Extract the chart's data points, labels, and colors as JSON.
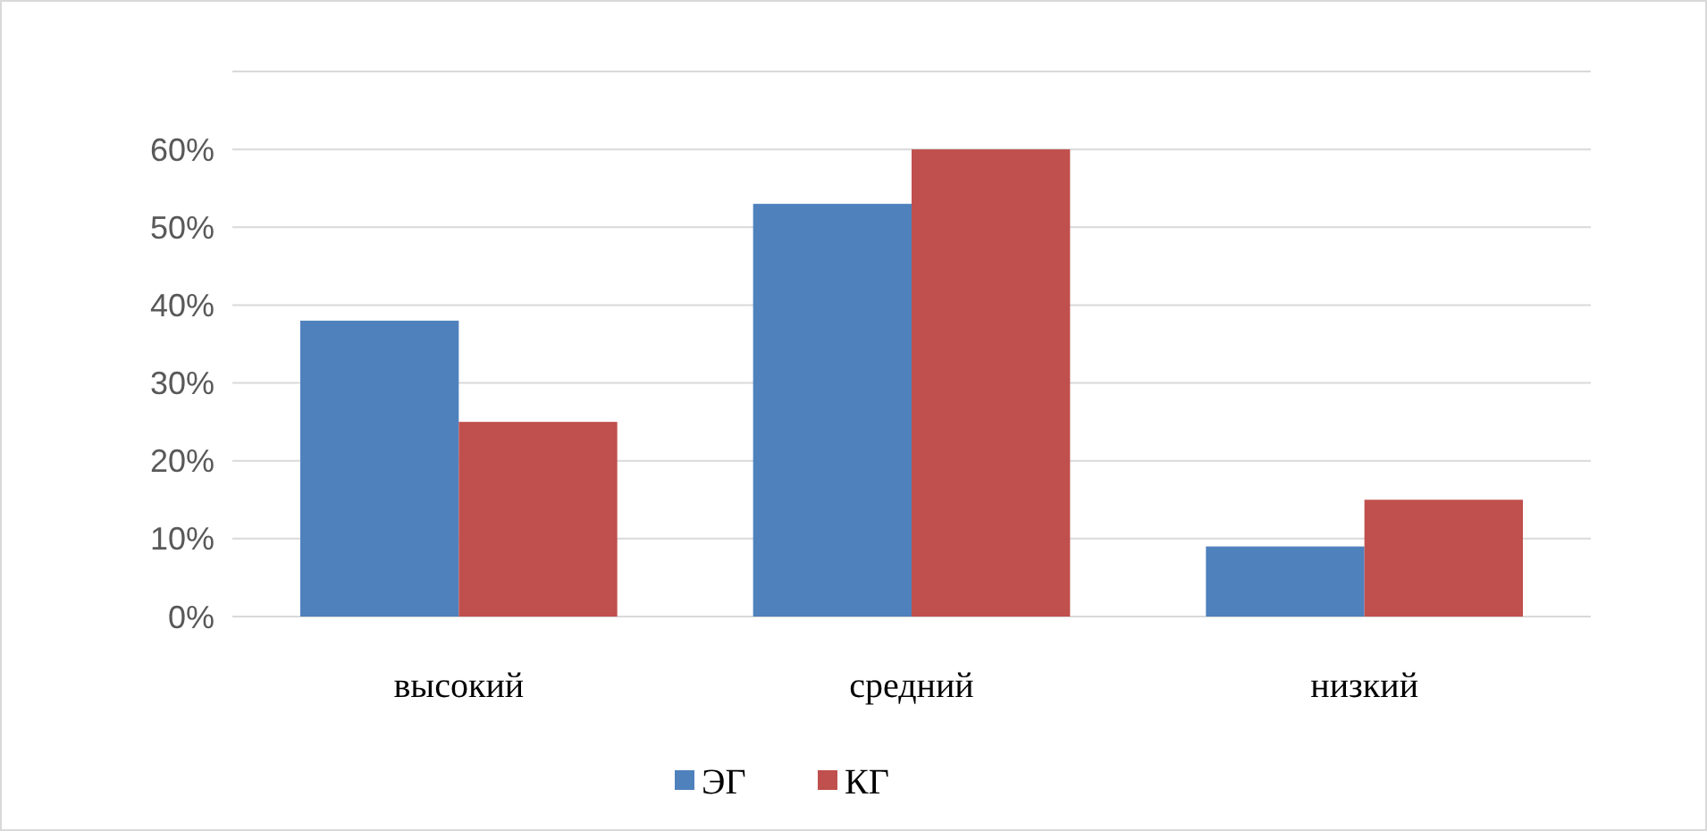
{
  "chart_data": {
    "type": "bar",
    "categories": [
      "высокий",
      "средний",
      "низкий"
    ],
    "series": [
      {
        "name": "ЭГ",
        "color": "#4f81bd",
        "values": [
          38,
          53,
          9
        ]
      },
      {
        "name": "КГ",
        "color": "#c0504d",
        "values": [
          25,
          60,
          15
        ]
      }
    ],
    "ylim": [
      0,
      70
    ],
    "yticks": [
      {
        "value": 0,
        "label": "0%"
      },
      {
        "value": 10,
        "label": "10%"
      },
      {
        "value": 20,
        "label": "20%"
      },
      {
        "value": 30,
        "label": "30%"
      },
      {
        "value": 40,
        "label": "40%"
      },
      {
        "value": 50,
        "label": "50%"
      },
      {
        "value": 60,
        "label": "60%"
      },
      {
        "value": 70,
        "label": null
      }
    ],
    "grid": true,
    "legend": "bottom"
  }
}
